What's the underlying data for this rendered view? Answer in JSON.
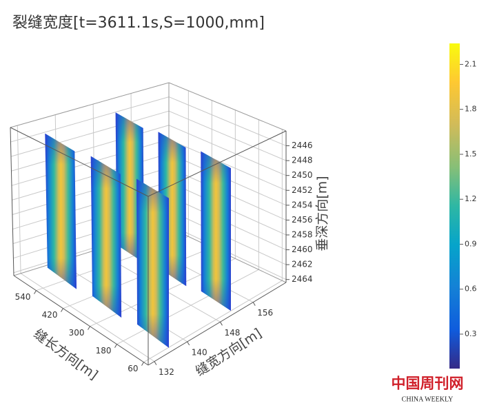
{
  "chart_data": {
    "type": "surface3d",
    "title": "裂缝宽度[t=3611.1s,S=1000,mm]",
    "x_label": "缝长方向[m]",
    "xlim": [
      40,
      640
    ],
    "xticks": [
      60,
      180,
      300,
      420,
      540
    ],
    "y_label": "缝宽方向[m]",
    "ylim": [
      130.5,
      164
    ],
    "yticks": [
      132,
      140,
      148,
      156
    ],
    "z_label": "垂深方向[m]",
    "zlim": [
      2444,
      2464.4
    ],
    "zticks": [
      2446,
      2448,
      2450,
      2452,
      2454,
      2456,
      2458,
      2460,
      2462,
      2464
    ],
    "colorbar": {
      "lim": [
        0.07,
        2.24
      ],
      "ticks": [
        0.3,
        0.6,
        0.9,
        1.2,
        1.5,
        1.8,
        2.1
      ]
    },
    "grid": true
  },
  "watermark": {
    "title": "中国周刊网",
    "subtitle": "CHINA WEEKLY"
  }
}
